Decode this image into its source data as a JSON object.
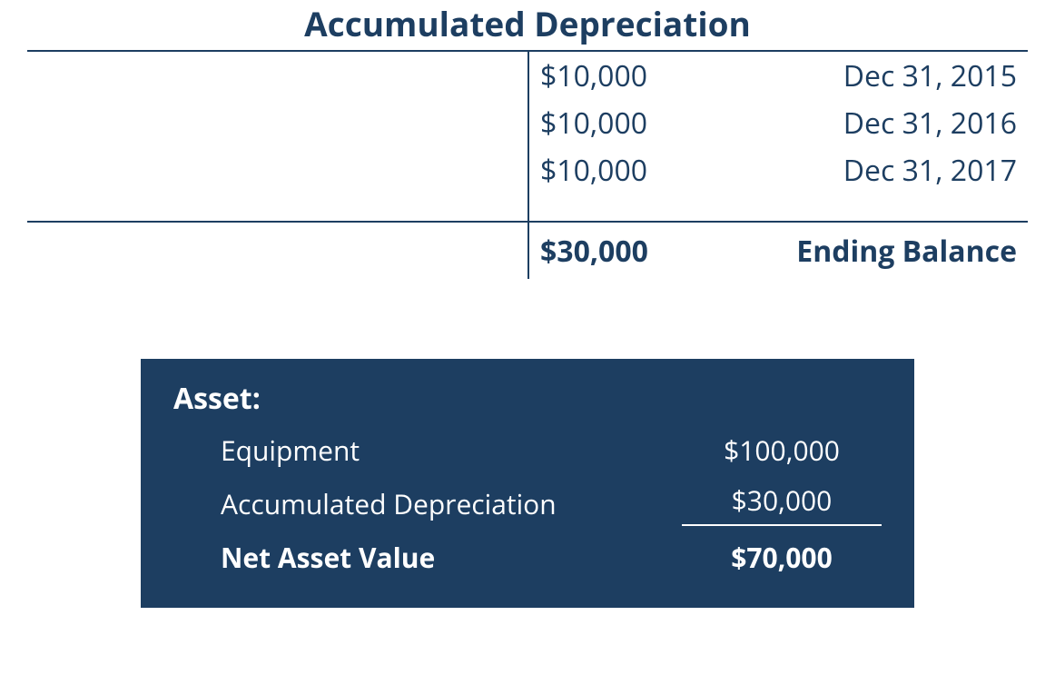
{
  "colors": {
    "primary": "#1d3e61",
    "panel_bg": "#1d3e61",
    "panel_text": "#ffffff",
    "background": "#ffffff"
  },
  "typography": {
    "title_fontsize": 37,
    "body_fontsize": 32,
    "panel_fontsize": 30,
    "title_weight": 700
  },
  "t_account": {
    "title": "Accumulated Depreciation",
    "entries": [
      {
        "amount": "$10,000",
        "date": "Dec 31, 2015"
      },
      {
        "amount": "$10,000",
        "date": "Dec 31, 2016"
      },
      {
        "amount": "$10,000",
        "date": "Dec 31, 2017"
      }
    ],
    "total": {
      "amount": "$30,000",
      "label": "Ending Balance"
    }
  },
  "asset_panel": {
    "title": "Asset:",
    "rows": [
      {
        "label": "Equipment",
        "value": "$100,000",
        "underline": false,
        "bold": false
      },
      {
        "label": "Accumulated Depreciation",
        "value": "$30,000",
        "underline": true,
        "bold": false
      },
      {
        "label": "Net Asset Value",
        "value": "$70,000",
        "underline": false,
        "bold": true
      }
    ]
  }
}
